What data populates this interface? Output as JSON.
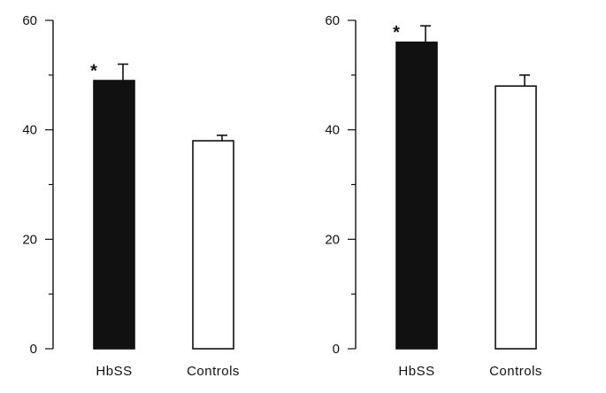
{
  "chart_data": [
    {
      "type": "bar",
      "categories": [
        "HbSS",
        "Controls"
      ],
      "values": [
        49,
        38
      ],
      "errors": [
        3,
        1
      ],
      "colors": [
        "#111111",
        "#ffffff"
      ],
      "ylim": [
        0,
        60
      ],
      "yticks": [
        "0",
        "20",
        "40",
        "60"
      ],
      "annotations": [
        "*",
        ""
      ],
      "title": "",
      "xlabel": "",
      "ylabel": ""
    },
    {
      "type": "bar",
      "categories": [
        "HbSS",
        "Controls"
      ],
      "values": [
        56,
        48
      ],
      "errors": [
        3,
        2
      ],
      "colors": [
        "#111111",
        "#ffffff"
      ],
      "ylim": [
        0,
        60
      ],
      "yticks": [
        "0",
        "20",
        "40",
        "60"
      ],
      "annotations": [
        "*",
        ""
      ],
      "title": "",
      "xlabel": "",
      "ylabel": ""
    }
  ]
}
